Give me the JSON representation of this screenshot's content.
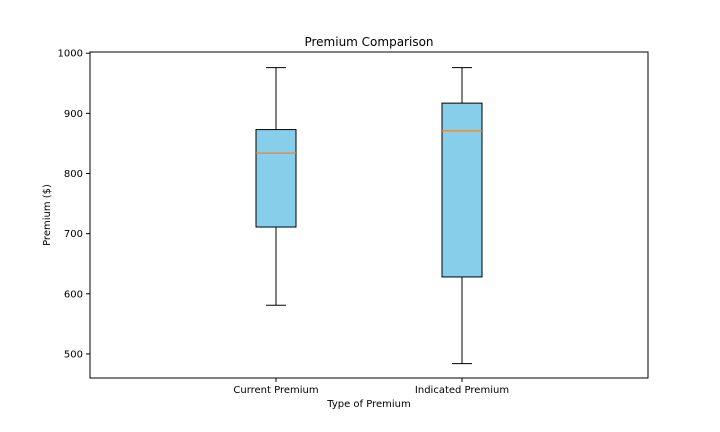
{
  "chart_data": {
    "type": "box",
    "title": "Premium Comparison",
    "xlabel": "Type of Premium",
    "ylabel": "Premium ($)",
    "ylim": [
      460,
      1002
    ],
    "yticks": [
      500,
      600,
      700,
      800,
      900,
      1000
    ],
    "grid": false,
    "categories": [
      "Current Premium",
      "Indicated Premium"
    ],
    "boxes": [
      {
        "label": "Current Premium",
        "whisker_low": 581,
        "q1": 711,
        "median": 834,
        "q3": 873,
        "whisker_high": 976
      },
      {
        "label": "Indicated Premium",
        "whisker_low": 484,
        "q1": 628,
        "median": 871,
        "q3": 917,
        "whisker_high": 976
      }
    ],
    "colors": {
      "box_fill": "#87ceeb",
      "median_line": "#ff7f0e",
      "edge": "#000000"
    }
  }
}
